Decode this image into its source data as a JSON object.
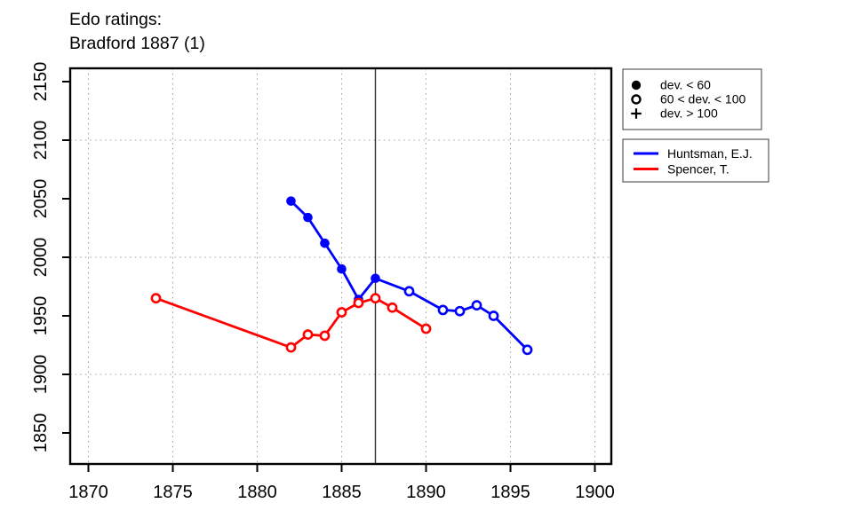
{
  "title": {
    "line1": "Edo ratings:",
    "line2": "Bradford 1887 (1)"
  },
  "chart_data": {
    "type": "line",
    "title": "Edo ratings: Bradford 1887 (1)",
    "xlabel": "",
    "ylabel": "",
    "x_axis": {
      "ticks": [
        1870,
        1875,
        1880,
        1885,
        1890,
        1895,
        1900
      ],
      "range": [
        1868.9,
        1901.0
      ]
    },
    "y_axis": {
      "ticks": [
        1850,
        1900,
        1950,
        2000,
        2050,
        2100,
        2150
      ],
      "range": [
        1822,
        2161
      ]
    },
    "grid": {
      "vertical_at_years": [
        1870,
        1875,
        1880,
        1885,
        1890,
        1895,
        1900
      ],
      "horizontal_at_ratings": [
        1900,
        2000,
        2100
      ],
      "style": "dotted"
    },
    "event_line_year": 1887,
    "series": [
      {
        "name": "Huntsman, E.J.",
        "color": "#0000ff",
        "points": [
          {
            "year": 1882,
            "rating": 2048,
            "marker": "filled"
          },
          {
            "year": 1883,
            "rating": 2034,
            "marker": "filled"
          },
          {
            "year": 1884,
            "rating": 2012,
            "marker": "filled"
          },
          {
            "year": 1885,
            "rating": 1990,
            "marker": "filled"
          },
          {
            "year": 1886,
            "rating": 1964,
            "marker": "filled"
          },
          {
            "year": 1887,
            "rating": 1982,
            "marker": "filled"
          },
          {
            "year": 1889,
            "rating": 1971,
            "marker": "open"
          },
          {
            "year": 1891,
            "rating": 1955,
            "marker": "open"
          },
          {
            "year": 1892,
            "rating": 1954,
            "marker": "open"
          },
          {
            "year": 1893,
            "rating": 1959,
            "marker": "open"
          },
          {
            "year": 1894,
            "rating": 1950,
            "marker": "open"
          },
          {
            "year": 1896,
            "rating": 1921,
            "marker": "open"
          }
        ]
      },
      {
        "name": "Spencer, T.",
        "color": "#ff0000",
        "points": [
          {
            "year": 1874,
            "rating": 1965,
            "marker": "open"
          },
          {
            "year": 1882,
            "rating": 1923,
            "marker": "open"
          },
          {
            "year": 1883,
            "rating": 1934,
            "marker": "open"
          },
          {
            "year": 1884,
            "rating": 1933,
            "marker": "open"
          },
          {
            "year": 1885,
            "rating": 1953,
            "marker": "open"
          },
          {
            "year": 1886,
            "rating": 1961,
            "marker": "open"
          },
          {
            "year": 1887,
            "rating": 1965,
            "marker": "open"
          },
          {
            "year": 1888,
            "rating": 1957,
            "marker": "open"
          },
          {
            "year": 1890,
            "rating": 1939,
            "marker": "open"
          }
        ]
      }
    ],
    "legend_position": "top-right-outside"
  },
  "legend_markers": {
    "items": [
      {
        "symbol": "filled-circle",
        "label": "dev. < 60"
      },
      {
        "symbol": "open-circle",
        "label": "60 < dev. < 100"
      },
      {
        "symbol": "plus",
        "label": "dev. > 100"
      }
    ]
  },
  "legend_series": {
    "items": [
      {
        "name": "Huntsman, E.J.",
        "color": "#0000ff"
      },
      {
        "name": "Spencer, T.",
        "color": "#ff0000"
      }
    ]
  },
  "colors": {
    "grid": "#a6a6a6",
    "event_line": "#303030",
    "axis": "#000000",
    "legend_border": "#5a5a5a"
  }
}
